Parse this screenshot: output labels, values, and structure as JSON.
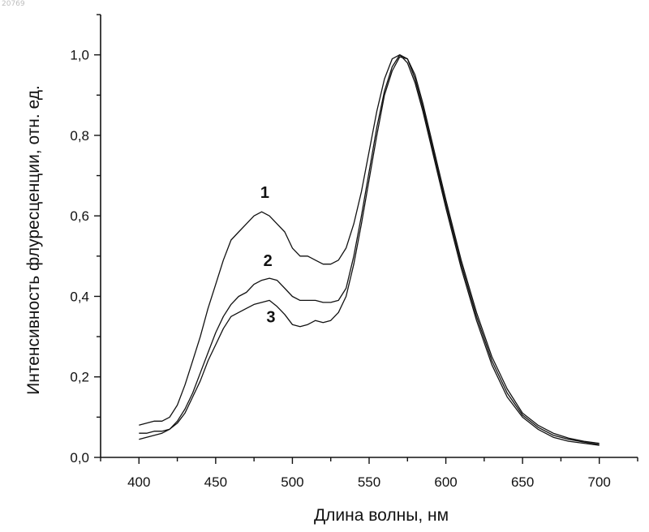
{
  "page_id": "20769",
  "chart_data": {
    "type": "line",
    "xlabel": "Длина волны, нм",
    "ylabel": "Интенсивность флуресценции, отн. ед.",
    "xlim": [
      375,
      725
    ],
    "ylim": [
      0,
      1.1
    ],
    "x_ticks": [
      400,
      450,
      500,
      550,
      600,
      650,
      700
    ],
    "x_tick_labels": [
      "400",
      "450",
      "500",
      "550",
      "600",
      "650",
      "700"
    ],
    "y_ticks": [
      0,
      0.2,
      0.4,
      0.6,
      0.8,
      1.0
    ],
    "y_tick_labels": [
      "0,0",
      "0,2",
      "0,4",
      "0,6",
      "0,8",
      "1,0"
    ],
    "grid": false,
    "line_color": "#111111",
    "series": [
      {
        "name": "1",
        "x": [
          400,
          405,
          410,
          415,
          420,
          425,
          430,
          435,
          440,
          445,
          450,
          455,
          460,
          465,
          470,
          475,
          480,
          485,
          490,
          495,
          500,
          505,
          510,
          515,
          520,
          525,
          530,
          535,
          540,
          545,
          550,
          555,
          560,
          565,
          570,
          575,
          580,
          585,
          590,
          595,
          600,
          610,
          620,
          630,
          640,
          650,
          660,
          670,
          680,
          690,
          700
        ],
        "y": [
          0.08,
          0.085,
          0.09,
          0.09,
          0.1,
          0.13,
          0.18,
          0.24,
          0.3,
          0.37,
          0.43,
          0.49,
          0.54,
          0.56,
          0.58,
          0.6,
          0.61,
          0.6,
          0.58,
          0.56,
          0.52,
          0.5,
          0.5,
          0.49,
          0.48,
          0.48,
          0.49,
          0.52,
          0.58,
          0.66,
          0.76,
          0.86,
          0.94,
          0.99,
          1.0,
          0.98,
          0.93,
          0.86,
          0.78,
          0.7,
          0.62,
          0.47,
          0.34,
          0.23,
          0.15,
          0.1,
          0.07,
          0.05,
          0.04,
          0.035,
          0.03
        ]
      },
      {
        "name": "2",
        "x": [
          400,
          405,
          410,
          415,
          420,
          425,
          430,
          435,
          440,
          445,
          450,
          455,
          460,
          465,
          470,
          475,
          480,
          485,
          490,
          495,
          500,
          505,
          510,
          515,
          520,
          525,
          530,
          535,
          540,
          545,
          550,
          555,
          560,
          565,
          570,
          575,
          580,
          585,
          590,
          595,
          600,
          610,
          620,
          630,
          640,
          650,
          660,
          670,
          680,
          690,
          700
        ],
        "y": [
          0.06,
          0.06,
          0.065,
          0.065,
          0.07,
          0.09,
          0.12,
          0.16,
          0.21,
          0.26,
          0.31,
          0.35,
          0.38,
          0.4,
          0.41,
          0.43,
          0.44,
          0.445,
          0.44,
          0.42,
          0.4,
          0.39,
          0.39,
          0.39,
          0.385,
          0.385,
          0.39,
          0.42,
          0.5,
          0.6,
          0.71,
          0.82,
          0.91,
          0.97,
          1.0,
          0.99,
          0.94,
          0.87,
          0.79,
          0.71,
          0.63,
          0.48,
          0.35,
          0.24,
          0.16,
          0.105,
          0.075,
          0.055,
          0.045,
          0.038,
          0.032
        ]
      },
      {
        "name": "3",
        "x": [
          400,
          405,
          410,
          415,
          420,
          425,
          430,
          435,
          440,
          445,
          450,
          455,
          460,
          465,
          470,
          475,
          480,
          485,
          490,
          495,
          500,
          505,
          510,
          515,
          520,
          525,
          530,
          535,
          540,
          545,
          550,
          555,
          560,
          565,
          570,
          575,
          580,
          585,
          590,
          595,
          600,
          610,
          620,
          630,
          640,
          650,
          660,
          670,
          680,
          690,
          700
        ],
        "y": [
          0.045,
          0.05,
          0.055,
          0.06,
          0.07,
          0.085,
          0.11,
          0.15,
          0.19,
          0.24,
          0.28,
          0.32,
          0.35,
          0.36,
          0.37,
          0.38,
          0.385,
          0.39,
          0.375,
          0.355,
          0.33,
          0.325,
          0.33,
          0.34,
          0.335,
          0.34,
          0.36,
          0.4,
          0.48,
          0.58,
          0.69,
          0.8,
          0.9,
          0.96,
          0.995,
          0.99,
          0.95,
          0.88,
          0.8,
          0.72,
          0.64,
          0.49,
          0.36,
          0.25,
          0.17,
          0.11,
          0.08,
          0.06,
          0.048,
          0.04,
          0.035
        ]
      }
    ],
    "annotations": [
      {
        "text": "1",
        "x": 482,
        "y": 0.645
      },
      {
        "text": "2",
        "x": 484,
        "y": 0.475
      },
      {
        "text": "3",
        "x": 486,
        "y": 0.335
      }
    ]
  }
}
